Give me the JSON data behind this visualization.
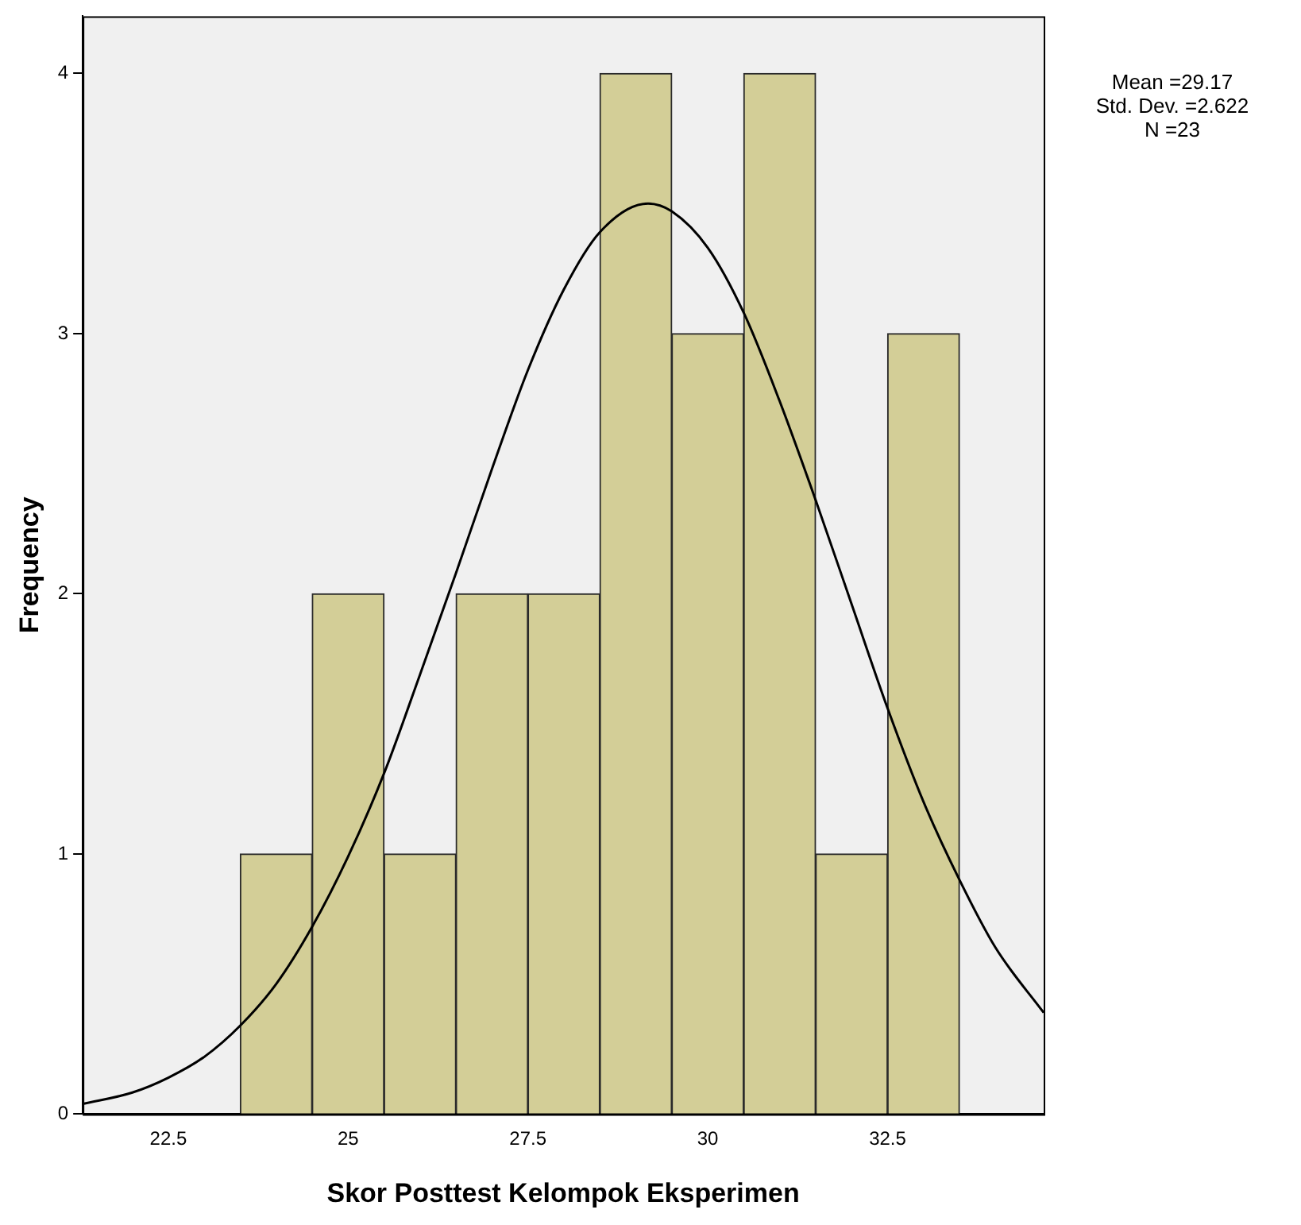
{
  "chart_data": {
    "type": "histogram",
    "xlabel": "Skor Posttest Kelompok Eksperimen",
    "ylabel": "Frequency",
    "annotations": [
      "Mean =29.17",
      "Std. Dev. =2.622",
      "N =23"
    ],
    "xlim": [
      21.31,
      34.67
    ],
    "ylim": [
      0,
      4.22
    ],
    "xticks": [
      22.5,
      25,
      27.5,
      30,
      32.5
    ],
    "yticks": [
      0,
      1,
      2,
      3,
      4
    ],
    "series": [
      {
        "type": "histogram",
        "color": "#d3ce97",
        "bins": [
          23.5,
          24.5,
          25.5,
          26.5,
          27.5,
          28.5,
          29.5,
          30.5,
          31.5,
          32.5,
          33.5
        ],
        "values": [
          1,
          2,
          1,
          2,
          2,
          4,
          3,
          4,
          1,
          3
        ]
      },
      {
        "type": "line",
        "color": "#000000",
        "x": [
          21.31,
          22,
          22.5,
          23,
          23.5,
          24,
          24.5,
          25,
          25.5,
          26,
          26.5,
          27,
          27.5,
          28,
          28.5,
          29.17,
          29.5,
          30,
          30.5,
          31,
          31.5,
          32,
          32.5,
          33,
          33.5,
          34,
          34.67
        ],
        "values": [
          0.039,
          0.083,
          0.14,
          0.22,
          0.34,
          0.5,
          0.72,
          0.99,
          1.31,
          1.69,
          2.08,
          2.48,
          2.86,
          3.17,
          3.39,
          3.5,
          3.47,
          3.33,
          3.08,
          2.74,
          2.36,
          1.96,
          1.56,
          1.2,
          0.9,
          0.64,
          0.39
        ]
      }
    ]
  }
}
